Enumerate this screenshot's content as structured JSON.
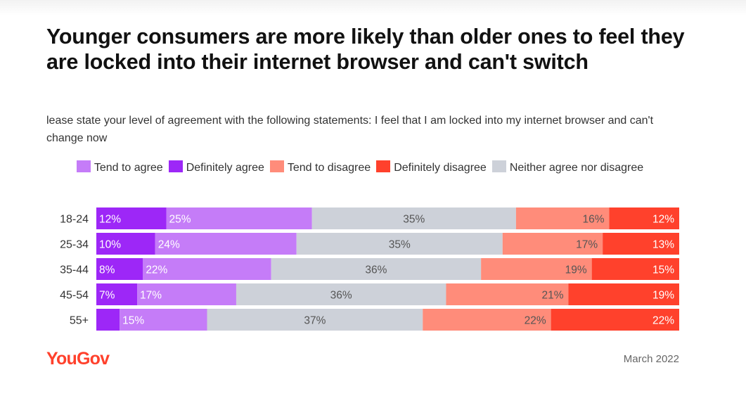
{
  "title": "Younger consumers are more likely than older ones to feel they are locked into their internet browser and can't switch",
  "subtitle": "lease state your level of agreement with the following statements: I feel that I am locked into my internet browser and can't change now",
  "source": "YouGov",
  "date": "March 2022",
  "colors": {
    "definitely_agree": "#9d27f7",
    "tend_to_agree": "#c57cf8",
    "neither": "#cdd1d9",
    "tend_to_disagree": "#ff8c7a",
    "definitely_disagree": "#ff412c"
  },
  "chart_data": {
    "type": "bar",
    "orientation": "horizontal",
    "stacked": true,
    "title": "Younger consumers are more likely than older ones to feel they are locked into their internet browser and can't switch",
    "categories": [
      "18-24",
      "25-34",
      "35-44",
      "45-54",
      "55+"
    ],
    "legend": [
      {
        "key": "tend_to_agree",
        "label": "Tend to agree"
      },
      {
        "key": "definitely_agree",
        "label": "Definitely agree"
      },
      {
        "key": "tend_to_disagree",
        "label": "Tend to disagree"
      },
      {
        "key": "definitely_disagree",
        "label": "Definitely disagree"
      },
      {
        "key": "neither",
        "label": "Neither agree nor disagree"
      }
    ],
    "series": [
      {
        "name": "Definitely agree",
        "key": "definitely_agree",
        "values": [
          12,
          10,
          8,
          7,
          4
        ],
        "labels": [
          "12%",
          "10%",
          "8%",
          "7%",
          ""
        ]
      },
      {
        "name": "Tend to agree",
        "key": "tend_to_agree",
        "values": [
          25,
          24,
          22,
          17,
          15
        ],
        "labels": [
          "25%",
          "24%",
          "22%",
          "17%",
          "15%"
        ]
      },
      {
        "name": "Neither agree nor disagree",
        "key": "neither",
        "values": [
          35,
          35,
          36,
          36,
          37
        ],
        "labels": [
          "35%",
          "35%",
          "36%",
          "36%",
          "37%"
        ]
      },
      {
        "name": "Tend to disagree",
        "key": "tend_to_disagree",
        "values": [
          16,
          17,
          19,
          21,
          22
        ],
        "labels": [
          "16%",
          "17%",
          "19%",
          "21%",
          "22%"
        ]
      },
      {
        "name": "Definitely disagree",
        "key": "definitely_disagree",
        "values": [
          12,
          13,
          15,
          19,
          22
        ],
        "labels": [
          "12%",
          "13%",
          "15%",
          "19%",
          "22%"
        ]
      }
    ],
    "xlim": [
      0,
      100
    ]
  }
}
